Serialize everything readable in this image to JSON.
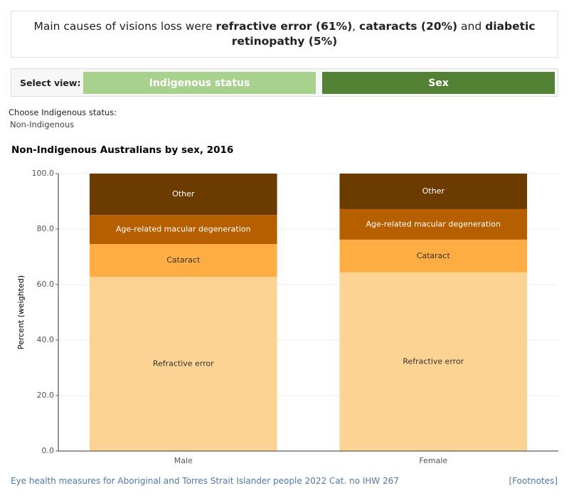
{
  "header": {
    "parts": [
      {
        "text": "Main causes of visions loss were ",
        "bold": false
      },
      {
        "text": "refractive error (61%)",
        "bold": true
      },
      {
        "text": ", ",
        "bold": false
      },
      {
        "text": "cataracts (20%)",
        "bold": true
      },
      {
        "text": " and ",
        "bold": false
      },
      {
        "text": "diabetic retinopathy (5%)",
        "bold": true
      }
    ]
  },
  "view_selector": {
    "label": "Select view:",
    "options": [
      "Indigenous status",
      "Sex"
    ],
    "selected": 1
  },
  "filter": {
    "label": "Choose Indigenous status:",
    "value": "Non-Indigenous"
  },
  "chart_data": {
    "type": "stacked_bar",
    "title": "Non-Indigenous Australians by sex, 2016",
    "y_label": "Percent (weighted)",
    "categories": [
      "Male",
      "Female"
    ],
    "series": [
      {
        "name": "Refractive error",
        "color": "#fdd393",
        "values": [
          62.8,
          64.4
        ]
      },
      {
        "name": "Cataract",
        "color": "#fdad42",
        "values": [
          11.8,
          11.8
        ]
      },
      {
        "name": "Age-related macular degeneration",
        "color": "#b55f00",
        "values": [
          10.5,
          11.0
        ]
      },
      {
        "name": "Other",
        "color": "#6b3b00",
        "values": [
          14.9,
          12.8
        ]
      }
    ],
    "ylim": [
      0,
      100
    ],
    "yticks": [
      {
        "value": 0,
        "label": "0.0"
      },
      {
        "value": 20,
        "label": "20.0"
      },
      {
        "value": 40,
        "label": "40.0"
      },
      {
        "value": 60,
        "label": "60.0"
      },
      {
        "value": 80,
        "label": "80.0"
      },
      {
        "value": 100,
        "label": "100.0"
      }
    ],
    "grid": true
  },
  "footer": {
    "source": "Eye health measures for Aboriginal and Torres Strait Islander people 2022 Cat. no IHW 267",
    "link": "[Footnotes]"
  }
}
